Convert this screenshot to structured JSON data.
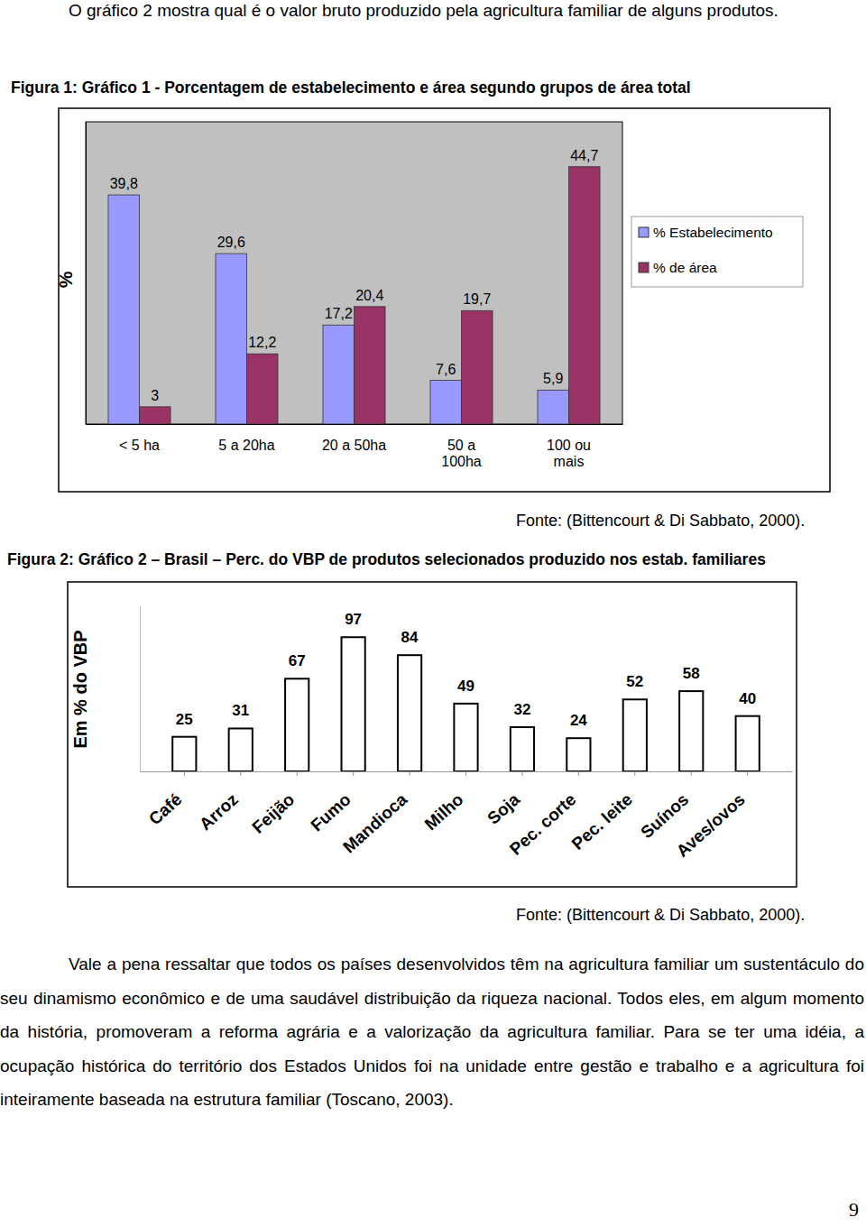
{
  "text": {
    "intro": "O gráfico 2 mostra qual é o valor bruto produzido pela agricultura familiar de alguns produtos.",
    "paragraph": "Vale a pena ressaltar que todos os países desenvolvidos têm na agricultura familiar um sustentáculo do seu dinamismo econômico e de uma saudável distribuição da riqueza nacional. Todos eles, em algum momento da história, promoveram a reforma agrária e a valorização da agricultura familiar. Para se ter uma idéia, a ocupação histórica do território dos Estados Unidos foi na unidade entre gestão e trabalho e a agricultura foi inteiramente baseada na estrutura familiar (Toscano, 2003).",
    "page_number": "9"
  },
  "chart_data": [
    {
      "type": "bar",
      "title": "Figura 1: Gráfico 1 - Porcentagem de estabelecimento e área segundo grupos de área total",
      "ylabel": "%",
      "source": "Fonte: (Bittencourt & Di Sabbato, 2000).",
      "categories": [
        "< 5 ha",
        "5 a 20ha",
        "20 a 50ha",
        "50 a 100ha",
        "100 ou mais"
      ],
      "series": [
        {
          "name": "% Estabelecimento",
          "color": "#9999ff",
          "values": [
            39.8,
            29.6,
            17.2,
            7.6,
            5.9
          ],
          "value_labels": [
            "39,8",
            "29,6",
            "17,2",
            "7,6",
            "5,9"
          ]
        },
        {
          "name": "% de área",
          "color": "#993366",
          "values": [
            3,
            12.2,
            20.4,
            19.7,
            44.7
          ],
          "value_labels": [
            "3",
            "12,2",
            "20,4",
            "19,7",
            "44,7"
          ]
        }
      ],
      "ylim": [
        0,
        52.5
      ],
      "tick_labels": "x",
      "data_labels": true,
      "legend": "right"
    },
    {
      "type": "bar",
      "title": "Figura 2: Gráfico 2 – Brasil – Perc. do VBP de produtos selecionados produzido nos estab. familiares",
      "ylabel": "Em % do VBP",
      "source": "Fonte: (Bittencourt & Di Sabbato, 2000).",
      "categories": [
        "Café",
        "Arroz",
        "Feijão",
        "Fumo",
        "Mandioca",
        "Milho",
        "Soja",
        "Pec. corte",
        "Pec. leite",
        "Suínos",
        "Aves/ovos"
      ],
      "values": [
        25,
        31,
        67,
        97,
        84,
        49,
        32,
        24,
        52,
        58,
        40
      ],
      "color": "#ffffff",
      "ylim": [
        0,
        120
      ],
      "tick_labels": "x",
      "data_labels": true
    }
  ]
}
